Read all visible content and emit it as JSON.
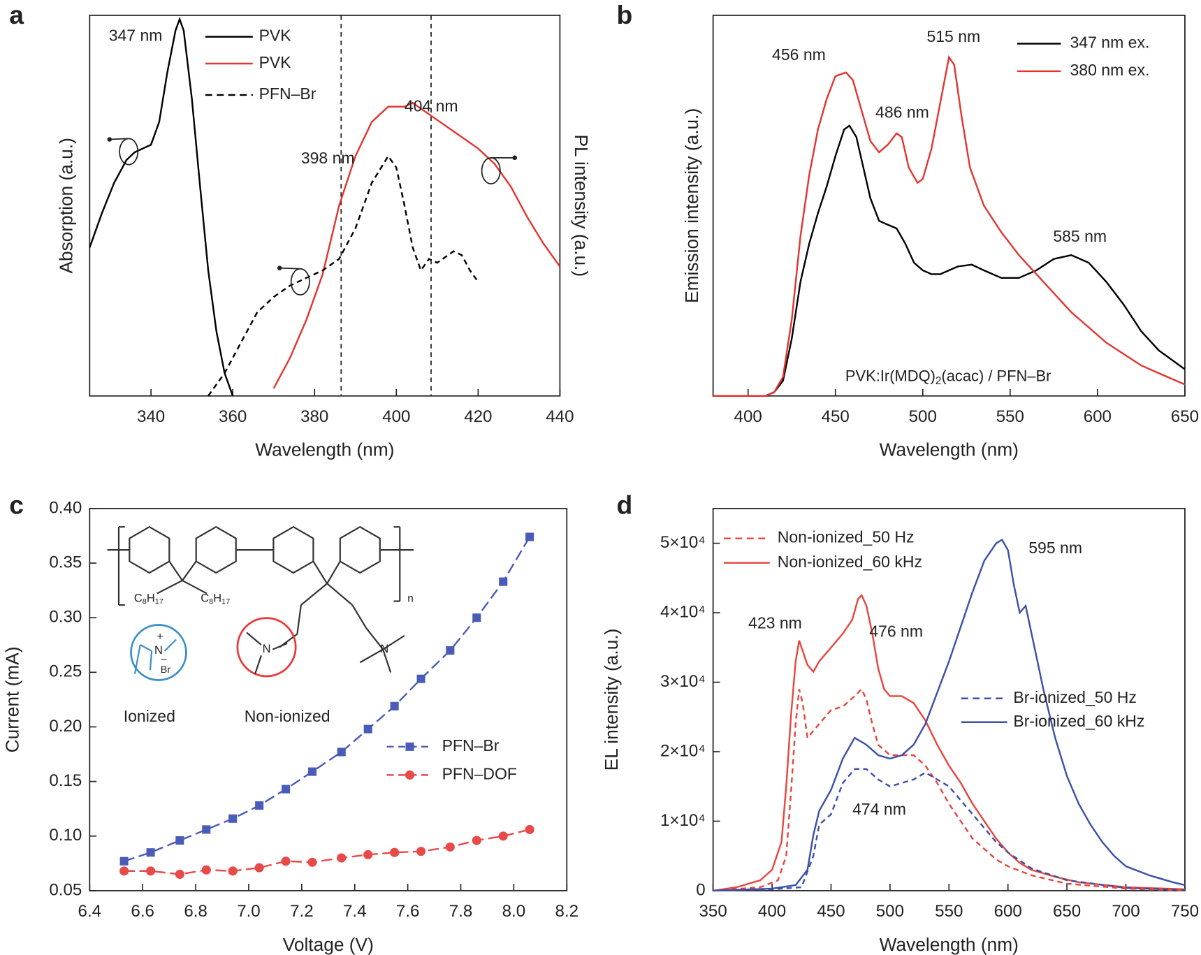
{
  "chart_data": [
    {
      "type": "line",
      "panel": "a",
      "xlabel": "Wavelength (nm)",
      "ylabel": "Absorption (a.u.)",
      "y2label": "PL intensity (a.u.)",
      "xlim": [
        325,
        440
      ],
      "xticks": [
        340,
        360,
        380,
        400,
        420,
        440
      ],
      "ylim": [
        0,
        1
      ],
      "y2lim": [
        0,
        1
      ],
      "vlines": [
        386.5,
        408.5
      ],
      "annotations": [
        "347 nm",
        "404 nm",
        "398 nm"
      ],
      "series": [
        {
          "name": "PVK",
          "color": "#000000",
          "dash": false,
          "x": [
            325,
            328,
            331,
            334,
            336,
            338,
            340,
            342,
            344,
            346,
            347,
            348,
            350,
            352,
            354,
            356,
            358,
            360
          ],
          "values": [
            0.39,
            0.48,
            0.56,
            0.62,
            0.64,
            0.65,
            0.66,
            0.72,
            0.85,
            0.96,
            0.99,
            0.96,
            0.78,
            0.55,
            0.33,
            0.17,
            0.06,
            0.0
          ]
        },
        {
          "name": "PVK",
          "color": "#e3342f",
          "dash": false,
          "axis": "y2",
          "x": [
            370,
            374,
            378,
            382,
            386,
            390,
            394,
            398,
            402,
            404,
            408,
            412,
            416,
            420,
            424,
            428,
            432,
            436,
            440
          ],
          "values": [
            0.02,
            0.1,
            0.2,
            0.32,
            0.5,
            0.63,
            0.72,
            0.76,
            0.76,
            0.77,
            0.74,
            0.71,
            0.68,
            0.65,
            0.61,
            0.55,
            0.47,
            0.4,
            0.34
          ]
        },
        {
          "name": "PFN–Br",
          "color": "#000000",
          "dash": true,
          "x": [
            354,
            358,
            362,
            366,
            370,
            374,
            378,
            382,
            386,
            390,
            394,
            398,
            400,
            402,
            404,
            406,
            408,
            410,
            414,
            416,
            418,
            420
          ],
          "values": [
            0.0,
            0.06,
            0.14,
            0.22,
            0.26,
            0.29,
            0.31,
            0.33,
            0.36,
            0.44,
            0.56,
            0.63,
            0.6,
            0.5,
            0.39,
            0.33,
            0.36,
            0.35,
            0.38,
            0.37,
            0.33,
            0.3
          ]
        }
      ]
    },
    {
      "type": "line",
      "panel": "b",
      "xlabel": "Wavelength (nm)",
      "ylabel": "Emission intensity (a.u.)",
      "xlim": [
        380,
        650
      ],
      "xticks": [
        400,
        450,
        500,
        550,
        600,
        650
      ],
      "ylim": [
        0,
        1
      ],
      "annotations": [
        "456 nm",
        "515 nm",
        "486 nm",
        "585 nm"
      ],
      "note": [
        "PVK:Ir(MDQ)",
        "2",
        "(acac) / PFN–Br"
      ],
      "series": [
        {
          "name": "347 nm ex.",
          "color": "#000000",
          "dash": false,
          "x": [
            380,
            410,
            415,
            420,
            425,
            430,
            435,
            440,
            445,
            450,
            455,
            458,
            462,
            466,
            470,
            475,
            480,
            485,
            490,
            495,
            500,
            505,
            510,
            515,
            520,
            528,
            535,
            545,
            555,
            565,
            575,
            585,
            595,
            605,
            615,
            625,
            635,
            650
          ],
          "values": [
            0,
            0,
            0.01,
            0.04,
            0.15,
            0.3,
            0.4,
            0.48,
            0.55,
            0.63,
            0.7,
            0.71,
            0.68,
            0.6,
            0.52,
            0.46,
            0.45,
            0.44,
            0.4,
            0.35,
            0.33,
            0.32,
            0.32,
            0.33,
            0.34,
            0.345,
            0.33,
            0.31,
            0.31,
            0.33,
            0.36,
            0.37,
            0.35,
            0.3,
            0.24,
            0.17,
            0.12,
            0.07
          ]
        },
        {
          "name": "380 nm ex.",
          "color": "#e3342f",
          "dash": false,
          "x": [
            380,
            410,
            415,
            420,
            425,
            430,
            435,
            440,
            445,
            450,
            456,
            460,
            465,
            470,
            475,
            480,
            485,
            488,
            492,
            497,
            500,
            505,
            510,
            515,
            518,
            522,
            527,
            535,
            545,
            555,
            565,
            575,
            585,
            595,
            605,
            615,
            625,
            635,
            650
          ],
          "values": [
            0,
            0,
            0.01,
            0.05,
            0.2,
            0.42,
            0.58,
            0.7,
            0.78,
            0.84,
            0.85,
            0.83,
            0.75,
            0.67,
            0.64,
            0.66,
            0.69,
            0.68,
            0.6,
            0.56,
            0.57,
            0.65,
            0.77,
            0.89,
            0.87,
            0.74,
            0.6,
            0.5,
            0.43,
            0.37,
            0.32,
            0.27,
            0.22,
            0.18,
            0.14,
            0.11,
            0.08,
            0.06,
            0.03
          ]
        }
      ]
    },
    {
      "type": "line",
      "panel": "c",
      "xlabel": "Voltage (V)",
      "ylabel": "Current (mA)",
      "xlim": [
        6.4,
        8.2
      ],
      "xticks": [
        6.4,
        6.6,
        6.8,
        {
          "value": 7,
          "label": "7.0"
        },
        7.2,
        7.4,
        7.6,
        7.8,
        {
          "value": 8,
          "label": "8.0"
        },
        8.2
      ],
      "ylim": [
        0.05,
        0.4
      ],
      "yticks": [
        0.05,
        {
          "value": 0.1,
          "label": "0.10"
        },
        0.15,
        {
          "value": 0.2,
          "label": "0.20"
        },
        0.25,
        {
          "value": 0.3,
          "label": "0.30"
        },
        0.35,
        {
          "value": 0.4,
          "label": "0.40"
        }
      ],
      "structure": {
        "substituent": [
          "C",
          "8",
          "H",
          "17"
        ],
        "repeat": "n",
        "nitrogen": "N",
        "bromide": "Br",
        "plus": "+",
        "minus": "−",
        "ionized": "Ionized",
        "non_ionized": "Non-ionized"
      },
      "series": [
        {
          "name": "PFN–Br",
          "color": "#4a5bb8",
          "dash": true,
          "marker": "square",
          "x": [
            6.53,
            6.63,
            6.74,
            6.84,
            6.94,
            7.04,
            7.14,
            7.24,
            7.35,
            7.45,
            7.55,
            7.65,
            7.76,
            7.86,
            7.96,
            8.06
          ],
          "values": [
            0.077,
            0.085,
            0.096,
            0.106,
            0.116,
            0.128,
            0.143,
            0.159,
            0.177,
            0.198,
            0.219,
            0.244,
            0.27,
            0.3,
            0.333,
            0.374
          ]
        },
        {
          "name": "PFN–DOF",
          "color": "#e84a4a",
          "dash": true,
          "marker": "circle",
          "x": [
            6.53,
            6.63,
            6.74,
            6.84,
            6.94,
            7.04,
            7.14,
            7.24,
            7.35,
            7.45,
            7.55,
            7.65,
            7.76,
            7.86,
            7.96,
            8.06
          ],
          "values": [
            0.068,
            0.068,
            0.065,
            0.069,
            0.068,
            0.071,
            0.077,
            0.076,
            0.08,
            0.083,
            0.085,
            0.086,
            0.09,
            0.096,
            0.1,
            0.106
          ]
        }
      ]
    },
    {
      "type": "line",
      "panel": "d",
      "xlabel": "Wavelength (nm)",
      "ylabel": "EL intensity (a.u.)",
      "xlim": [
        350,
        750
      ],
      "xticks": [
        350,
        400,
        450,
        500,
        550,
        600,
        650,
        700,
        750
      ],
      "ylim": [
        0,
        55000
      ],
      "yticks": [
        0,
        {
          "value": 10000,
          "label": "1×10⁴"
        },
        {
          "value": 20000,
          "label": "2×10⁴"
        },
        {
          "value": 30000,
          "label": "3×10⁴"
        },
        {
          "value": 40000,
          "label": "4×10⁴"
        },
        {
          "value": 50000,
          "label": "5×10⁴"
        }
      ],
      "annotations": [
        "423 nm",
        "476 nm",
        "595 nm",
        "474 nm"
      ],
      "series": [
        {
          "name": "Non-ionized_50 Hz",
          "color": "#e8453c",
          "dash": true,
          "x": [
            350,
            390,
            405,
            412,
            416,
            420,
            423,
            426,
            430,
            435,
            440,
            450,
            460,
            470,
            476,
            480,
            485,
            490,
            500,
            510,
            520,
            530,
            540,
            550,
            560,
            570,
            580,
            590,
            600,
            620,
            650,
            700,
            750
          ],
          "values": [
            0,
            500,
            1500,
            5000,
            14000,
            24000,
            29000,
            27000,
            22000,
            23000,
            24000,
            26000,
            26500,
            28000,
            29000,
            27500,
            24000,
            21000,
            19500,
            19500,
            19500,
            18000,
            15500,
            12500,
            10000,
            7500,
            6000,
            4500,
            3500,
            2200,
            1000,
            300,
            0
          ]
        },
        {
          "name": "Non-ionized_60 kHz",
          "color": "#e8453c",
          "dash": false,
          "x": [
            350,
            370,
            390,
            400,
            408,
            412,
            416,
            420,
            423,
            426,
            430,
            435,
            440,
            450,
            460,
            468,
            473,
            476,
            480,
            485,
            490,
            495,
            500,
            510,
            520,
            530,
            540,
            550,
            560,
            570,
            580,
            590,
            600,
            610,
            620,
            640,
            660,
            700,
            750
          ],
          "values": [
            0,
            500,
            1500,
            3000,
            7000,
            15000,
            25000,
            33000,
            36000,
            34500,
            32500,
            31500,
            33000,
            35000,
            37000,
            39000,
            42000,
            42500,
            41000,
            37000,
            32000,
            29000,
            28000,
            28000,
            27000,
            24500,
            21000,
            18000,
            15500,
            12500,
            10000,
            7500,
            5500,
            4000,
            3000,
            2000,
            1200,
            500,
            200
          ]
        },
        {
          "name": "Br-ionized_50 Hz",
          "color": "#3b4fa8",
          "dash": true,
          "x": [
            350,
            400,
            425,
            435,
            440,
            450,
            460,
            470,
            480,
            490,
            500,
            510,
            520,
            530,
            540,
            550,
            560,
            570,
            580,
            590,
            600,
            620,
            650,
            700,
            750
          ],
          "values": [
            0,
            200,
            500,
            5000,
            9500,
            11000,
            15500,
            17500,
            17500,
            16000,
            15000,
            15500,
            16000,
            17000,
            16000,
            15000,
            13000,
            11000,
            9000,
            7000,
            5500,
            3200,
            1500,
            400,
            100
          ]
        },
        {
          "name": "Br-ionized_60 kHz",
          "color": "#3b4fa8",
          "dash": false,
          "x": [
            350,
            400,
            420,
            430,
            435,
            440,
            445,
            450,
            460,
            470,
            480,
            490,
            500,
            510,
            520,
            530,
            540,
            550,
            560,
            570,
            580,
            590,
            595,
            600,
            605,
            610,
            615,
            620,
            630,
            640,
            650,
            660,
            670,
            680,
            690,
            700,
            720,
            740,
            750
          ],
          "values": [
            0,
            300,
            800,
            3000,
            8000,
            11500,
            13000,
            14500,
            19000,
            22000,
            21000,
            19500,
            19000,
            19500,
            21000,
            24000,
            28500,
            33000,
            38000,
            43000,
            47500,
            50000,
            50500,
            49000,
            44000,
            40000,
            41000,
            37000,
            29000,
            22000,
            16500,
            12500,
            9500,
            7000,
            5000,
            3500,
            2200,
            1200,
            800
          ]
        }
      ]
    }
  ]
}
